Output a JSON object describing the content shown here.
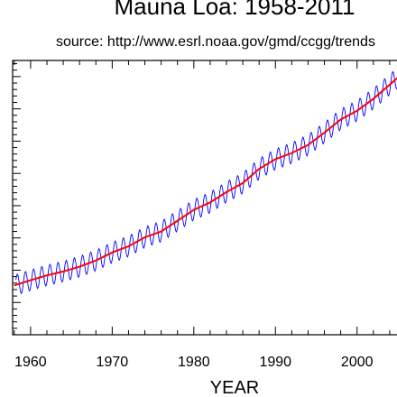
{
  "chart_data": {
    "type": "line",
    "title": "Mauna Loa: 1958-2011",
    "subtitle": "source: http://www.esrl.noaa.gov/gmd/ccgg/trends",
    "xlabel": "YEAR",
    "ylabel": "",
    "xlim": [
      1957.8,
      2006.0
    ],
    "ylim": [
      300,
      385
    ],
    "x_ticks": [
      1960,
      1970,
      1980,
      1990,
      2000
    ],
    "y_ticks_unlabeled": [
      310,
      320,
      330,
      340,
      350,
      360,
      370,
      380
    ],
    "grid": false,
    "series": [
      {
        "color": "#0000ff",
        "style": "monthly seasonal",
        "seasonal_amplitude": 3.2,
        "x": [
          1958,
          1960,
          1962,
          1964,
          1966,
          1968,
          1970,
          1972,
          1974,
          1976,
          1978,
          1980,
          1982,
          1984,
          1986,
          1988,
          1990,
          1992,
          1994,
          1996,
          1998,
          2000,
          2002,
          2004,
          2006
        ],
        "y": [
          315.3,
          316.9,
          318.4,
          319.6,
          321.1,
          323.0,
          325.5,
          327.4,
          330.2,
          332.0,
          335.3,
          338.7,
          341.0,
          344.2,
          347.0,
          351.4,
          354.4,
          356.3,
          358.8,
          362.6,
          366.7,
          369.4,
          373.1,
          377.5,
          381.9
        ]
      },
      {
        "color": "#ff0000",
        "style": "trend",
        "x": [
          1958,
          1960,
          1962,
          1964,
          1966,
          1968,
          1970,
          1972,
          1974,
          1976,
          1978,
          1980,
          1982,
          1984,
          1986,
          1988,
          1990,
          1992,
          1994,
          1996,
          1998,
          2000,
          2002,
          2004,
          2006
        ],
        "y": [
          315.3,
          316.9,
          318.4,
          319.6,
          321.1,
          323.0,
          325.5,
          327.4,
          330.2,
          332.0,
          335.3,
          338.7,
          341.0,
          344.2,
          347.0,
          351.4,
          354.4,
          356.3,
          358.8,
          362.6,
          366.7,
          369.4,
          373.1,
          377.5,
          381.9
        ]
      }
    ]
  }
}
